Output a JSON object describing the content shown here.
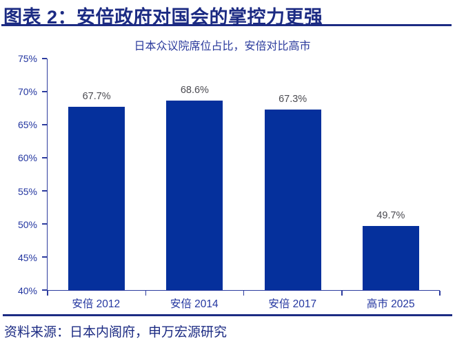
{
  "header": {
    "title": "图表 2：安倍政府对国会的掌控力更强"
  },
  "footer": {
    "source": "资料来源：日本内阁府，申万宏源研究"
  },
  "colors": {
    "bar": "#05309c",
    "navy": "#1c2b83",
    "axis_text": "#2336a0",
    "subtitle_text": "#2a3a9c",
    "value_label": "#4a4a50",
    "axis_line": "#2c3b9e",
    "background": "#ffffff"
  },
  "chart_data": {
    "type": "bar",
    "title": "日本众议院席位占比，安倍对比高市",
    "categories": [
      "安倍 2012",
      "安倍 2014",
      "安倍 2017",
      "高市 2025"
    ],
    "values": [
      67.7,
      68.6,
      67.3,
      49.7
    ],
    "value_labels": [
      "67.7%",
      "68.6%",
      "67.3%",
      "49.7%"
    ],
    "xlabel": "",
    "ylabel": "",
    "ylim": [
      40,
      75
    ],
    "ytick_values": [
      40,
      45,
      50,
      55,
      60,
      65,
      70,
      75
    ],
    "ytick_labels": [
      "40%",
      "45%",
      "50%",
      "55%",
      "60%",
      "65%",
      "70%",
      "75%"
    ],
    "grid": false,
    "legend": null,
    "bar_color": "#05309c"
  }
}
